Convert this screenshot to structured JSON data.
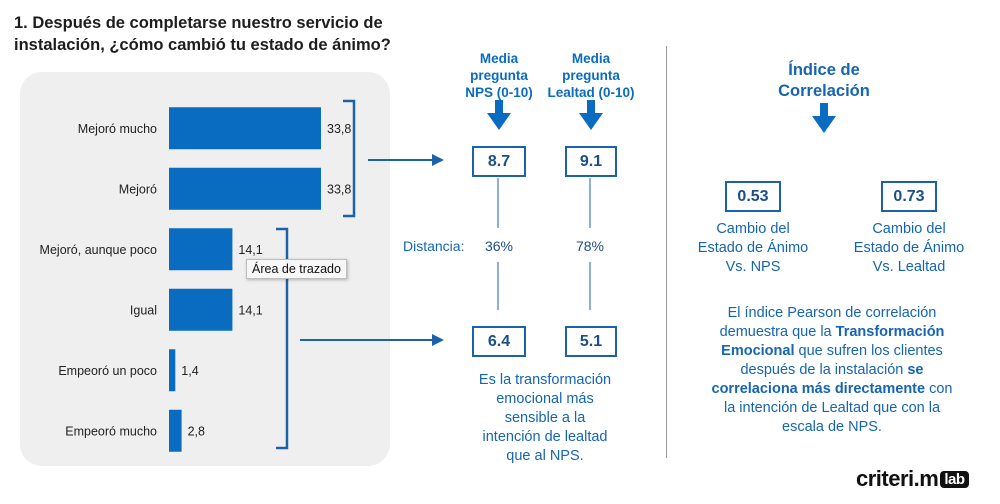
{
  "question": "1. Después de completarse nuestro servicio de instalación, ¿cómo cambió tu estado de ánimo?",
  "tooltip": "Área de trazado",
  "chart_data": {
    "type": "bar",
    "orientation": "horizontal",
    "categories": [
      "Mejoró mucho",
      "Mejoró",
      "Mejoró, aunque poco",
      "Igual",
      "Empeoró un poco",
      "Empeoró mucho"
    ],
    "values": [
      33.8,
      33.8,
      14.1,
      14.1,
      1.4,
      2.8
    ],
    "value_labels": [
      "33,8",
      "33,8",
      "14,1",
      "14,1",
      "1,4",
      "2,8"
    ],
    "bar_color": "#0a6cc1",
    "xlim": [
      0,
      40
    ]
  },
  "nps_column": {
    "header": [
      "Media",
      "pregunta",
      "NPS (0-10)"
    ],
    "top_value": "8.7",
    "distance": "36%",
    "bottom_value": "6.4"
  },
  "loyalty_column": {
    "header": [
      "Media",
      "pregunta",
      "Lealtad (0-10)"
    ],
    "top_value": "9.1",
    "distance": "78%",
    "bottom_value": "5.1"
  },
  "distance_label": "Distancia:",
  "middle_note": [
    "Es la transformación",
    "emocional más",
    "sensible a la",
    "intención de lealtad",
    "que al NPS."
  ],
  "correlation": {
    "title": [
      "Índice de",
      "Correlación"
    ],
    "nps_value": "0.53",
    "nps_label": [
      "Cambio del",
      "Estado de Ánimo",
      "Vs. NPS"
    ],
    "loyalty_value": "0.73",
    "loyalty_label": [
      "Cambio del",
      "Estado de Ánimo",
      "Vs. Lealtad"
    ]
  },
  "pearson_note": {
    "part1": "El índice Pearson de correlación demuestra que la ",
    "bold1": "Transformación Emocional",
    "part2": " que sufren los clientes después de la instalación ",
    "bold2": "se correlaciona más directamente",
    "part3": " con la intención de Lealtad que con la escala de NPS."
  },
  "logo": {
    "main": "criteri.m",
    "badge": "lab"
  },
  "colors": {
    "accent": "#0a6cc1",
    "box_border": "#1b62a9",
    "bracket": "#1b62a9"
  }
}
